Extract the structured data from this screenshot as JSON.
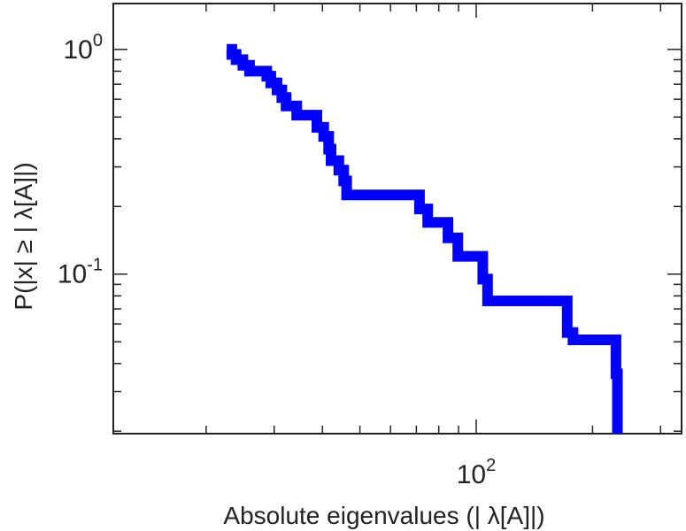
{
  "chart_data": {
    "type": "line",
    "subtype": "step-ccdf",
    "title": "",
    "xlabel": "Absolute eigenvalues (|     λ[A]|)",
    "ylabel": "P(|x|  ≥ | λ[A]|)",
    "xscale": "log",
    "yscale": "log",
    "xlim": [
      11.5,
      340
    ],
    "ylim": [
      0.0195,
      1.6
    ],
    "grid": false,
    "legend": "none",
    "line_color": "#0000ff",
    "x_tick_labels": [
      {
        "value": 100,
        "base": "10",
        "exp": "2"
      }
    ],
    "y_tick_labels": [
      {
        "value": 1,
        "base": "10",
        "exp": "0"
      },
      {
        "value": 0.1,
        "base": "10",
        "exp": "-1"
      }
    ],
    "series": [
      {
        "x": [
          22.6,
          23.3,
          23.9,
          24.9,
          25.9,
          28.7,
          29.4,
          30.5,
          31.4,
          32.2,
          34.3,
          38.7,
          40.3,
          41.5,
          42.1,
          44.1,
          45.4,
          46.2,
          71.3,
          74.9,
          84.5,
          89.6,
          104,
          107,
          172,
          178,
          230,
          232
        ],
        "y": [
          1.0,
          0.95,
          0.9,
          0.85,
          0.8,
          0.76,
          0.71,
          0.66,
          0.61,
          0.56,
          0.51,
          0.45,
          0.41,
          0.36,
          0.32,
          0.29,
          0.26,
          0.225,
          0.195,
          0.17,
          0.145,
          0.12,
          0.095,
          0.076,
          0.055,
          0.051,
          0.036,
          0.0195
        ]
      }
    ]
  }
}
